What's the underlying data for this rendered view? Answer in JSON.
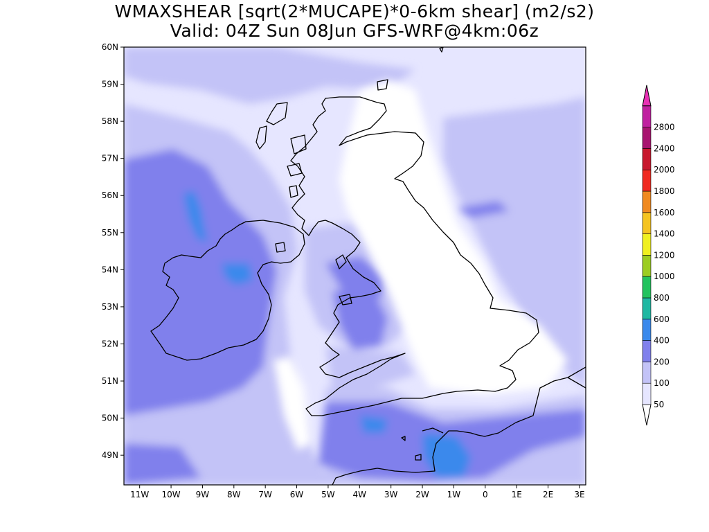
{
  "title": {
    "line1": "WMAXSHEAR [sqrt(2*MUCAPE)*0-6km shear] (m2/s2)",
    "line2": "Valid: 04Z Sun 08Jun GFS-WRF@4km:06z"
  },
  "map": {
    "lon_range": [
      -11.5,
      3.2
    ],
    "lat_range": [
      48.2,
      60
    ],
    "lat_ticks": [
      {
        "value": 60,
        "label": "60N"
      },
      {
        "value": 59,
        "label": "59N"
      },
      {
        "value": 58,
        "label": "58N"
      },
      {
        "value": 57,
        "label": "57N"
      },
      {
        "value": 56,
        "label": "56N"
      },
      {
        "value": 55,
        "label": "55N"
      },
      {
        "value": 54,
        "label": "54N"
      },
      {
        "value": 53,
        "label": "53N"
      },
      {
        "value": 52,
        "label": "52N"
      },
      {
        "value": 51,
        "label": "51N"
      },
      {
        "value": 50,
        "label": "50N"
      },
      {
        "value": 49,
        "label": "49N"
      }
    ],
    "lon_ticks": [
      {
        "value": -11,
        "label": "11W"
      },
      {
        "value": -10,
        "label": "10W"
      },
      {
        "value": -9,
        "label": "9W"
      },
      {
        "value": -8,
        "label": "8W"
      },
      {
        "value": -7,
        "label": "7W"
      },
      {
        "value": -6,
        "label": "6W"
      },
      {
        "value": -5,
        "label": "5W"
      },
      {
        "value": -4,
        "label": "4W"
      },
      {
        "value": -3,
        "label": "3W"
      },
      {
        "value": -2,
        "label": "2W"
      },
      {
        "value": -1,
        "label": "1W"
      },
      {
        "value": 0,
        "label": "0"
      },
      {
        "value": 1,
        "label": "1E"
      },
      {
        "value": 2,
        "label": "2E"
      },
      {
        "value": 3,
        "label": "3E"
      }
    ]
  },
  "colorbar": {
    "levels": [
      {
        "label": "50",
        "color": "#e6e6ff"
      },
      {
        "label": "100",
        "color": "#c3c3f7"
      },
      {
        "label": "200",
        "color": "#8080ec"
      },
      {
        "label": "400",
        "color": "#3a89ec"
      },
      {
        "label": "600",
        "color": "#1fb8a2"
      },
      {
        "label": "800",
        "color": "#22c35e"
      },
      {
        "label": "1000",
        "color": "#9ccd22"
      },
      {
        "label": "1200",
        "color": "#f0f020"
      },
      {
        "label": "1400",
        "color": "#f5c420"
      },
      {
        "label": "1600",
        "color": "#f08a20"
      },
      {
        "label": "1800",
        "color": "#f02a20"
      },
      {
        "label": "2000",
        "color": "#c8182e"
      },
      {
        "label": "2400",
        "color": "#a81470"
      },
      {
        "label": "2800",
        "color": "#c020a0"
      }
    ],
    "top_color": "#e830b4",
    "below_color": "#ffffff"
  }
}
